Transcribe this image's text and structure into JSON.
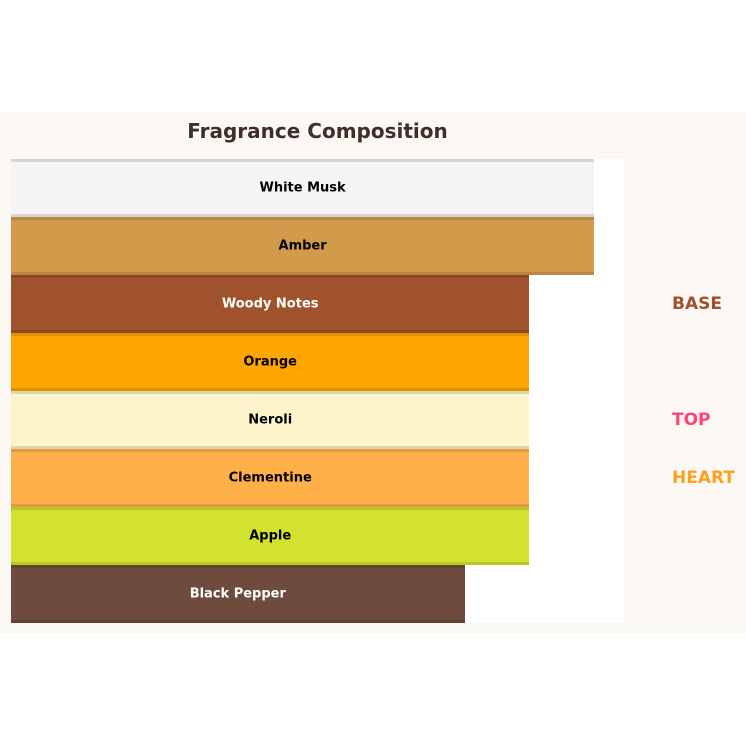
{
  "chart_data": {
    "type": "bar",
    "orientation": "horizontal",
    "title": "Fragrance Composition",
    "categories": [
      "White Musk",
      "Amber",
      "Woody Notes",
      "Orange",
      "Neroli",
      "Clementine",
      "Apple",
      "Black Pepper"
    ],
    "values": [
      9,
      9,
      8,
      8,
      8,
      8,
      8,
      7
    ],
    "colors": [
      "#f4f4f4",
      "#d29b4c",
      "#a0522d",
      "#ffa500",
      "#fdf4cc",
      "#ffb048",
      "#d2e22e",
      "#6d4c3d"
    ],
    "label_colors": [
      "#000000",
      "#000000",
      "#ffffff",
      "#000000",
      "#000000",
      "#000000",
      "#000000",
      "#ffffff"
    ],
    "xlim": [
      0,
      9.46
    ],
    "grid": false,
    "annotations": [
      {
        "text": "BASE",
        "color": "#a0522d",
        "category": "Woody Notes"
      },
      {
        "text": "TOP",
        "color": "#ff4575",
        "category": "Neroli"
      },
      {
        "text": "HEART",
        "color": "#ffa020",
        "category": "Clementine"
      }
    ]
  }
}
